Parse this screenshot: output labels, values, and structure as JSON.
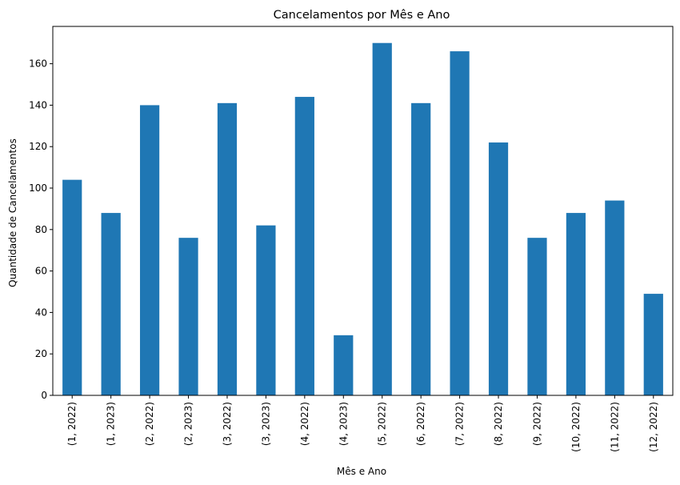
{
  "chart_data": {
    "type": "bar",
    "title": "Cancelamentos por Mês e Ano",
    "xlabel": "Mês e Ano",
    "ylabel": "Quantidade de Cancelamentos",
    "categories": [
      "(1, 2022)",
      "(1, 2023)",
      "(2, 2022)",
      "(2, 2023)",
      "(3, 2022)",
      "(3, 2023)",
      "(4, 2022)",
      "(4, 2023)",
      "(5, 2022)",
      "(6, 2022)",
      "(7, 2022)",
      "(8, 2022)",
      "(9, 2022)",
      "(10, 2022)",
      "(11, 2022)",
      "(12, 2022)"
    ],
    "values": [
      104,
      88,
      140,
      76,
      141,
      82,
      144,
      29,
      170,
      141,
      166,
      122,
      76,
      88,
      94,
      49
    ],
    "ylim": [
      0,
      178
    ],
    "yticks": [
      0,
      20,
      40,
      60,
      80,
      100,
      120,
      140,
      160
    ],
    "bar_color": "#1f77b4",
    "grid": false,
    "legend": "none"
  }
}
